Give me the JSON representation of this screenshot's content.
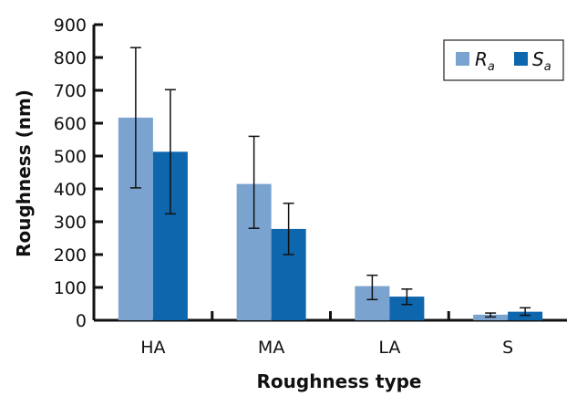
{
  "chart_data": {
    "type": "bar",
    "title": "",
    "xlabel": "Roughness type",
    "ylabel": "Roughness (nm)",
    "categories": [
      "HA",
      "MA",
      "LA",
      "S"
    ],
    "ylim": [
      0,
      900
    ],
    "yticks": [
      0,
      100,
      200,
      300,
      400,
      500,
      600,
      700,
      800,
      900
    ],
    "grid": false,
    "legend_position": "top-right",
    "series": [
      {
        "name_main": "R",
        "name_sub": "a",
        "color": "#7aa3cf",
        "values": [
          617,
          415,
          104,
          17
        ],
        "error_low": [
          403,
          280,
          63,
          10
        ],
        "error_high": [
          830,
          560,
          137,
          22
        ]
      },
      {
        "name_main": "S",
        "name_sub": "a",
        "color": "#0e66ad",
        "values": [
          513,
          278,
          72,
          26
        ],
        "error_low": [
          324,
          200,
          48,
          15
        ],
        "error_high": [
          702,
          356,
          95,
          38
        ]
      }
    ]
  }
}
